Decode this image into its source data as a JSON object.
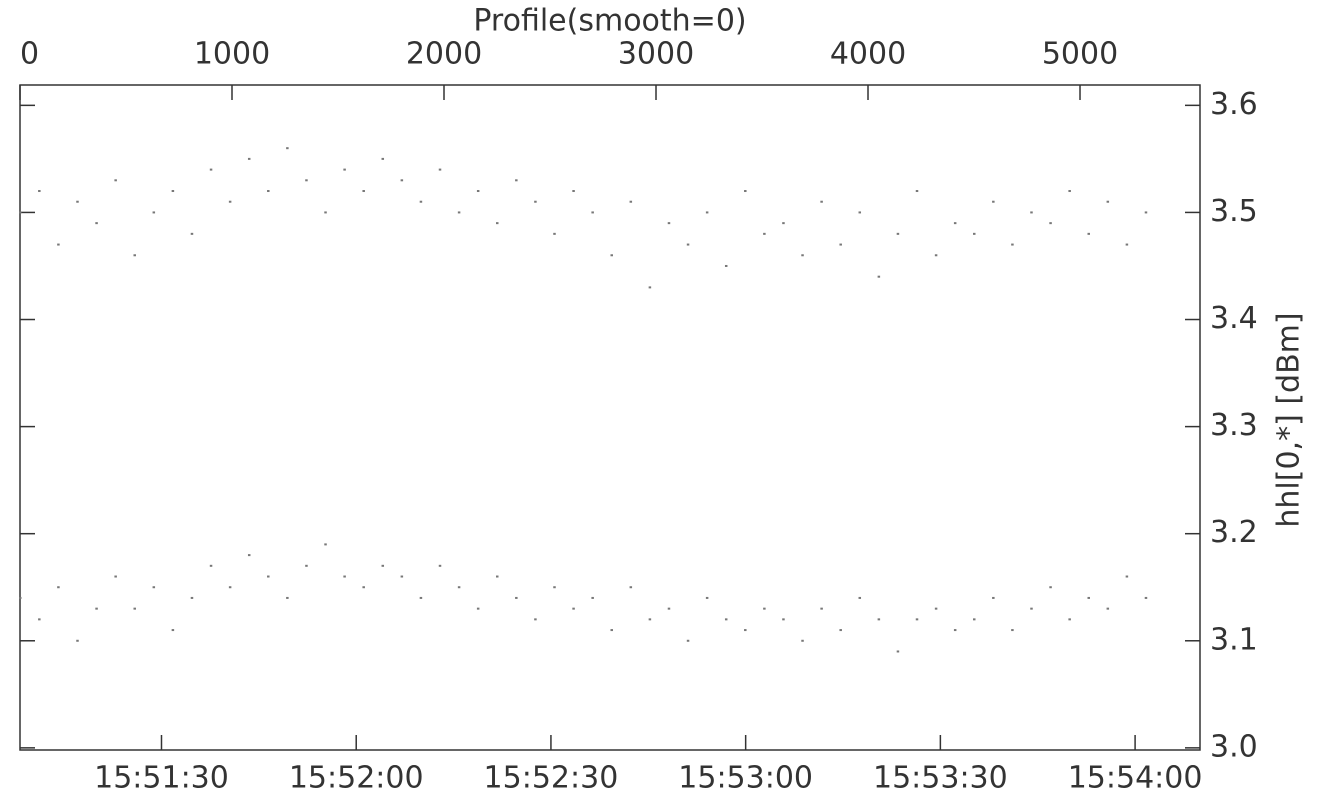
{
  "chart_data": {
    "type": "scatter",
    "title": "Profile(smooth=0)",
    "y_label": "hhl[0,*] [dBm]",
    "color": "#777777",
    "x": [
      0,
      90,
      180,
      270,
      360,
      450,
      540,
      630,
      720,
      810,
      900,
      990,
      1080,
      1170,
      1260,
      1350,
      1440,
      1530,
      1620,
      1710,
      1800,
      1890,
      1980,
      2070,
      2160,
      2250,
      2340,
      2430,
      2520,
      2610,
      2700,
      2790,
      2880,
      2970,
      3060,
      3150,
      3240,
      3330,
      3420,
      3510,
      3600,
      3690,
      3780,
      3870,
      3960,
      4050,
      4140,
      4230,
      4320,
      4410,
      4500,
      4590,
      4680,
      4770,
      4860,
      4950,
      5040,
      5130,
      5220,
      5310
    ],
    "series": [
      {
        "color": "#777777",
        "values": [
          3.5,
          3.52,
          3.47,
          3.51,
          3.49,
          3.53,
          3.46,
          3.5,
          3.52,
          3.48,
          3.54,
          3.51,
          3.55,
          3.52,
          3.56,
          3.53,
          3.5,
          3.54,
          3.52,
          3.55,
          3.53,
          3.51,
          3.54,
          3.5,
          3.52,
          3.49,
          3.53,
          3.51,
          3.48,
          3.52,
          3.5,
          3.46,
          3.51,
          3.43,
          3.49,
          3.47,
          3.5,
          3.45,
          3.52,
          3.48,
          3.49,
          3.46,
          3.51,
          3.47,
          3.5,
          3.44,
          3.48,
          3.52,
          3.46,
          3.49,
          3.48,
          3.51,
          3.47,
          3.5,
          3.49,
          3.52,
          3.48,
          3.51,
          3.47,
          3.5
        ]
      },
      {
        "color": "#777777",
        "values": [
          3.14,
          3.12,
          3.15,
          3.1,
          3.13,
          3.16,
          3.13,
          3.15,
          3.11,
          3.14,
          3.17,
          3.15,
          3.18,
          3.16,
          3.14,
          3.17,
          3.19,
          3.16,
          3.15,
          3.17,
          3.16,
          3.14,
          3.17,
          3.15,
          3.13,
          3.16,
          3.14,
          3.12,
          3.15,
          3.13,
          3.14,
          3.11,
          3.15,
          3.12,
          3.13,
          3.1,
          3.14,
          3.12,
          3.11,
          3.13,
          3.12,
          3.1,
          3.13,
          3.11,
          3.14,
          3.12,
          3.09,
          3.12,
          3.13,
          3.11,
          3.12,
          3.14,
          3.11,
          3.13,
          3.15,
          3.12,
          3.14,
          3.13,
          3.16,
          3.14
        ]
      }
    ],
    "xlim": [
      0,
      5566
    ],
    "xticks": [
      0,
      1000,
      2000,
      3000,
      4000,
      5000
    ],
    "x2lim": [
      57068.2,
      57250
    ],
    "x2ticks": [
      {
        "value": 57090,
        "label": "15:51:30"
      },
      {
        "value": 57120,
        "label": "15:52:00"
      },
      {
        "value": 57150,
        "label": "15:52:30"
      },
      {
        "value": 57180,
        "label": "15:53:00"
      },
      {
        "value": 57210,
        "label": "15:53:30"
      },
      {
        "value": 57240,
        "label": "15:54:00"
      }
    ],
    "ylim": [
      2.998,
      3.619
    ],
    "yticks": [
      {
        "value": 3.0,
        "label": "3.0"
      },
      3.1,
      3.2,
      3.3,
      3.4,
      3.5,
      3.6
    ]
  }
}
